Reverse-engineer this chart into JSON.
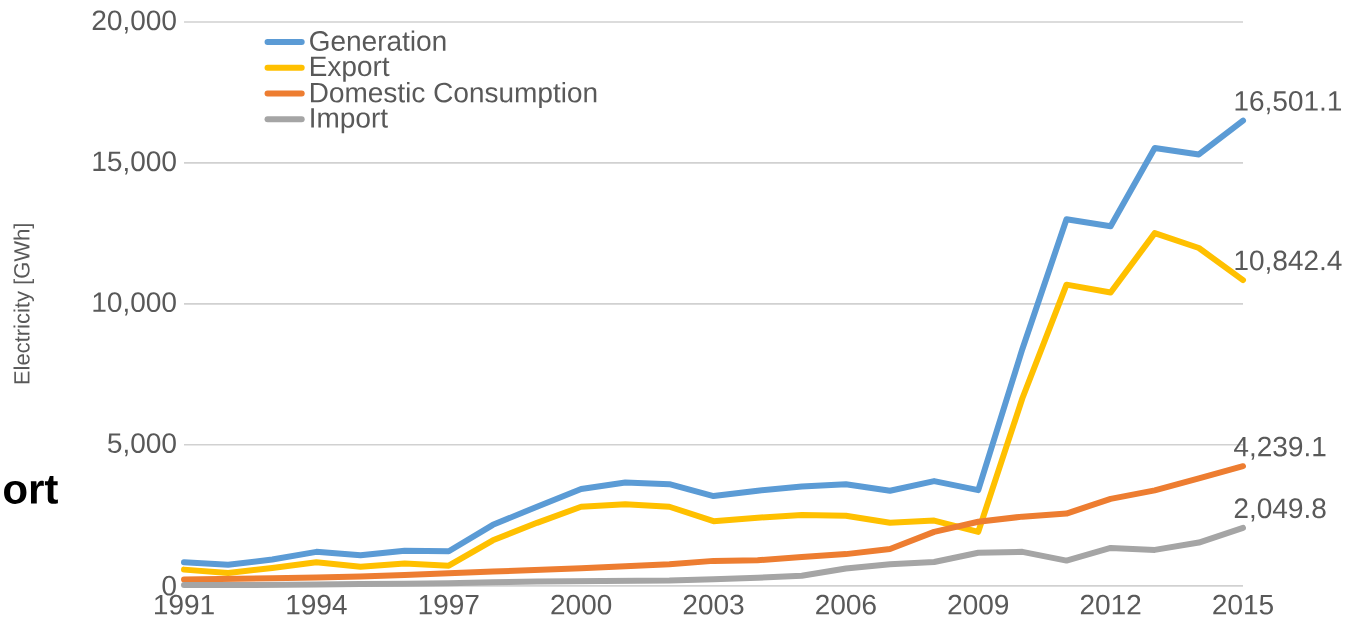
{
  "chart_data": {
    "type": "line",
    "ylabel": "Electricity [GWh]",
    "x": [
      1991,
      1992,
      1993,
      1994,
      1995,
      1996,
      1997,
      1998,
      1999,
      2000,
      2001,
      2002,
      2003,
      2004,
      2005,
      2006,
      2007,
      2008,
      2009,
      2010,
      2011,
      2012,
      2013,
      2014,
      2015
    ],
    "xlim": [
      1991,
      2015
    ],
    "xticks": [
      1991,
      1994,
      1997,
      2000,
      2003,
      2006,
      2009,
      2012,
      2015
    ],
    "ylim": [
      0,
      20000
    ],
    "yticks": [
      0,
      {
        "value": 5000,
        "label": "5,000"
      },
      {
        "value": 10000,
        "label": "10,000"
      },
      {
        "value": 15000,
        "label": "15,000"
      },
      {
        "value": 20000,
        "label": "20,000"
      }
    ],
    "grid": "y",
    "legend": "top left",
    "series": [
      {
        "name": "Generation",
        "color": "#5b9bd5",
        "values": [
          830,
          740,
          930,
          1200,
          1080,
          1240,
          1220,
          2160,
          2800,
          3430,
          3660,
          3600,
          3180,
          3370,
          3520,
          3600,
          3370,
          3710,
          3390,
          8400,
          13000,
          12750,
          15530,
          15300,
          16501.1
        ],
        "value_labels": [
          null,
          null,
          null,
          null,
          null,
          null,
          null,
          null,
          null,
          null,
          null,
          null,
          null,
          null,
          null,
          null,
          null,
          null,
          null,
          null,
          null,
          null,
          null,
          null,
          "16,501.1"
        ]
      },
      {
        "name": "Export",
        "color": "#ffc000",
        "values": [
          570,
          450,
          630,
          830,
          670,
          790,
          710,
          1610,
          2230,
          2800,
          2890,
          2800,
          2290,
          2410,
          2510,
          2480,
          2230,
          2310,
          1910,
          6650,
          10680,
          10400,
          12510,
          11980,
          10842.4
        ],
        "value_labels": [
          null,
          null,
          null,
          null,
          null,
          null,
          null,
          null,
          null,
          null,
          null,
          null,
          null,
          null,
          null,
          null,
          null,
          null,
          null,
          null,
          null,
          null,
          null,
          null,
          "10,842.4"
        ]
      },
      {
        "name": "Domestic Consumption",
        "color": "#ed7d31",
        "values": [
          220,
          240,
          260,
          290,
          330,
          380,
          440,
          500,
          560,
          620,
          690,
          760,
          880,
          900,
          1020,
          1120,
          1300,
          1910,
          2270,
          2450,
          2560,
          3080,
          3380,
          3810,
          4239.1
        ],
        "value_labels": [
          null,
          null,
          null,
          null,
          null,
          null,
          null,
          null,
          null,
          null,
          null,
          null,
          null,
          null,
          null,
          null,
          null,
          null,
          null,
          null,
          null,
          null,
          null,
          null,
          "4,239.1"
        ]
      },
      {
        "name": "Import",
        "color": "#a5a5a5",
        "values": [
          20,
          20,
          30,
          40,
          60,
          70,
          90,
          120,
          150,
          160,
          170,
          180,
          230,
          280,
          350,
          610,
          760,
          840,
          1170,
          1200,
          890,
          1340,
          1270,
          1530,
          2049.8
        ],
        "value_labels": [
          null,
          null,
          null,
          null,
          null,
          null,
          null,
          null,
          null,
          null,
          null,
          null,
          null,
          null,
          null,
          null,
          null,
          null,
          null,
          null,
          null,
          null,
          null,
          null,
          "2,049.8"
        ]
      }
    ],
    "annotations": [
      "ort"
    ]
  }
}
